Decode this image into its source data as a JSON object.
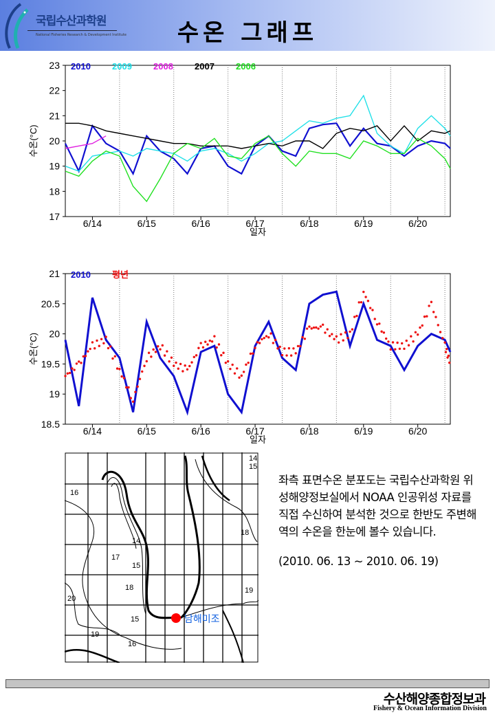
{
  "header": {
    "logo_name": "국립수산과학원",
    "logo_sub": "National Fisheries Research & Development Institute",
    "title": "수온 그래프"
  },
  "chart_data": [
    {
      "type": "line",
      "title": "",
      "xlabel": "일자",
      "ylabel": "수온(°C)",
      "ylim": [
        17,
        23
      ],
      "yticks": [
        17,
        18,
        19,
        20,
        21,
        22,
        23
      ],
      "xlim": [
        14.0,
        21.1
      ],
      "xtick_labels": [
        "6/14",
        "6/15",
        "6/16",
        "6/17",
        "6/18",
        "6/19",
        "6/20"
      ],
      "x": [
        14.0,
        14.25,
        14.5,
        14.75,
        15.0,
        15.25,
        15.5,
        15.75,
        16.0,
        16.25,
        16.5,
        16.75,
        17.0,
        17.25,
        17.5,
        17.75,
        18.0,
        18.25,
        18.5,
        18.75,
        19.0,
        19.25,
        19.5,
        19.75,
        20.0,
        20.25,
        20.5,
        20.75,
        21.0,
        21.1
      ],
      "legend": "top-left",
      "series": [
        {
          "name": "2010",
          "color": "#1010d0",
          "values": [
            19.9,
            18.8,
            20.6,
            19.9,
            19.6,
            18.7,
            20.2,
            19.6,
            19.3,
            18.7,
            19.7,
            19.8,
            19.0,
            18.7,
            19.8,
            20.2,
            19.6,
            19.4,
            20.5,
            20.65,
            20.7,
            19.8,
            20.5,
            19.9,
            19.8,
            19.4,
            19.8,
            20.0,
            19.9,
            19.7
          ]
        },
        {
          "name": "2009",
          "color": "#20e0e8",
          "values": [
            19.0,
            18.8,
            19.4,
            19.5,
            19.6,
            19.4,
            19.7,
            19.6,
            19.5,
            19.2,
            19.6,
            19.7,
            19.5,
            19.2,
            19.5,
            19.9,
            20.0,
            20.4,
            20.8,
            20.7,
            20.9,
            21.0,
            21.8,
            20.3,
            19.8,
            19.5,
            20.5,
            21.0,
            20.5,
            20.2
          ]
        },
        {
          "name": "2008",
          "color": "#e020e0",
          "values": [
            19.7,
            19.8,
            19.9,
            20.2,
            null,
            null,
            null,
            null,
            null,
            null,
            null,
            null,
            null,
            null,
            null,
            null,
            null,
            null,
            null,
            null,
            null,
            null,
            null,
            null,
            null,
            null,
            null,
            null,
            null,
            null
          ]
        },
        {
          "name": "2007",
          "color": "#000000",
          "values": [
            20.7,
            20.7,
            20.6,
            20.4,
            20.3,
            20.2,
            20.1,
            20.0,
            19.9,
            19.9,
            19.8,
            19.8,
            19.8,
            19.7,
            19.8,
            19.9,
            19.8,
            20.0,
            20.0,
            19.7,
            20.3,
            20.5,
            20.4,
            20.6,
            20.0,
            20.6,
            20.0,
            20.4,
            20.3,
            20.4
          ]
        },
        {
          "name": "2006",
          "color": "#20e020",
          "values": [
            18.8,
            18.6,
            19.2,
            19.6,
            19.4,
            18.2,
            17.6,
            18.5,
            19.5,
            19.9,
            19.7,
            20.1,
            19.4,
            19.3,
            19.9,
            20.2,
            19.5,
            19.0,
            19.6,
            19.5,
            19.5,
            19.3,
            20.0,
            19.8,
            19.5,
            19.5,
            20.1,
            19.8,
            19.3,
            18.9
          ]
        }
      ]
    },
    {
      "type": "line",
      "title": "",
      "xlabel": "일자",
      "ylabel": "수온(°C)",
      "ylim": [
        18.5,
        21
      ],
      "yticks": [
        18.5,
        19,
        19.5,
        20,
        20.5,
        21
      ],
      "xlim": [
        14.0,
        21.1
      ],
      "xtick_labels": [
        "6/14",
        "6/15",
        "6/16",
        "6/17",
        "6/18",
        "6/19",
        "6/20"
      ],
      "x": [
        14.0,
        14.25,
        14.5,
        14.75,
        15.0,
        15.25,
        15.5,
        15.75,
        16.0,
        16.25,
        16.5,
        16.75,
        17.0,
        17.25,
        17.5,
        17.75,
        18.0,
        18.25,
        18.5,
        18.75,
        19.0,
        19.25,
        19.5,
        19.75,
        20.0,
        20.25,
        20.5,
        20.75,
        21.0,
        21.1
      ],
      "legend": "top-left",
      "series": [
        {
          "name": "2010",
          "color": "#1010d0",
          "style": "line",
          "values": [
            19.9,
            18.8,
            20.6,
            19.9,
            19.6,
            18.7,
            20.2,
            19.6,
            19.3,
            18.7,
            19.7,
            19.8,
            19.0,
            18.7,
            19.8,
            20.2,
            19.6,
            19.4,
            20.5,
            20.65,
            20.7,
            19.8,
            20.5,
            19.9,
            19.8,
            19.4,
            19.8,
            20.0,
            19.9,
            19.7
          ]
        },
        {
          "name": "평년",
          "color": "#ee1010",
          "style": "dots",
          "values": [
            19.3,
            19.5,
            19.8,
            19.9,
            19.4,
            18.9,
            19.6,
            19.8,
            19.5,
            19.4,
            19.8,
            19.9,
            19.5,
            19.3,
            19.8,
            20.0,
            19.7,
            19.7,
            20.1,
            20.1,
            19.9,
            20.0,
            20.7,
            20.2,
            19.8,
            19.8,
            20.0,
            20.5,
            19.8,
            19.5
          ]
        }
      ]
    }
  ],
  "map": {
    "contour_labels": [
      "16",
      "17",
      "14",
      "15",
      "18",
      "20",
      "15",
      "19",
      "16",
      "14",
      "15",
      "18",
      "19"
    ],
    "station_label": "남해미조",
    "station_color": "#ff0000"
  },
  "description": {
    "text": "좌측 표면수온 분포도는 국립수산과학원 위성해양정보실에서 NOAA 인공위성 자료를 직접 수신하여 분석한 것으로  한반도 주변해역의 수온을 한눈에 볼수 있습니다.",
    "period": "(2010. 06. 13 ~ 2010. 06. 19)"
  },
  "footer": {
    "division_ko": "수산해양종합정보과",
    "division_en": "Fishery & Ocean Information Division"
  }
}
